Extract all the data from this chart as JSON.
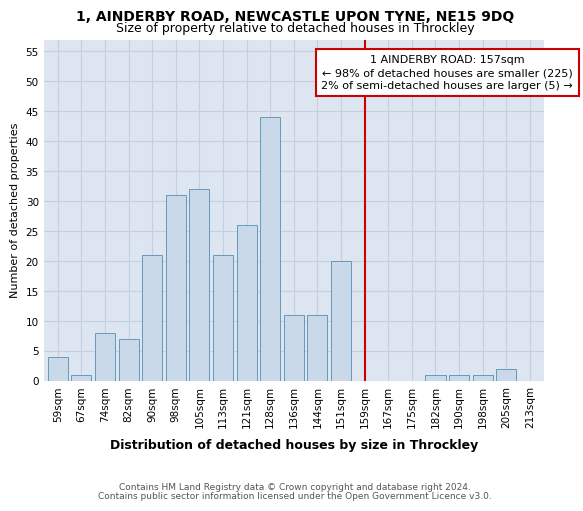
{
  "title1": "1, AINDERBY ROAD, NEWCASTLE UPON TYNE, NE15 9DQ",
  "title2": "Size of property relative to detached houses in Throckley",
  "xlabel": "Distribution of detached houses by size in Throckley",
  "ylabel": "Number of detached properties",
  "categories": [
    "59sqm",
    "67sqm",
    "74sqm",
    "82sqm",
    "90sqm",
    "98sqm",
    "105sqm",
    "113sqm",
    "121sqm",
    "128sqm",
    "136sqm",
    "144sqm",
    "151sqm",
    "159sqm",
    "167sqm",
    "175sqm",
    "182sqm",
    "190sqm",
    "198sqm",
    "205sqm",
    "213sqm"
  ],
  "values": [
    4,
    1,
    8,
    7,
    21,
    31,
    32,
    21,
    26,
    44,
    11,
    11,
    20,
    0,
    0,
    0,
    1,
    1,
    1,
    2,
    0
  ],
  "bar_color": "#c9d9ea",
  "bar_edge_color": "#6699bb",
  "bar_width": 0.85,
  "marker_color": "#cc0000",
  "annotation_line1": "1 AINDERBY ROAD: 157sqm",
  "annotation_line2": "← 98% of detached houses are smaller (225)",
  "annotation_line3": "2% of semi-detached houses are larger (5) →",
  "annotation_box_color": "#ffffff",
  "annotation_border_color": "#cc0000",
  "ylim": [
    0,
    57
  ],
  "yticks": [
    0,
    5,
    10,
    15,
    20,
    25,
    30,
    35,
    40,
    45,
    50,
    55
  ],
  "grid_color": "#c5cfe0",
  "background_color": "#dde5f0",
  "footer1": "Contains HM Land Registry data © Crown copyright and database right 2024.",
  "footer2": "Contains public sector information licensed under the Open Government Licence v3.0.",
  "title1_fontsize": 10,
  "title2_fontsize": 9,
  "xlabel_fontsize": 9,
  "ylabel_fontsize": 8,
  "tick_fontsize": 7.5,
  "annotation_fontsize": 8,
  "footer_fontsize": 6.5
}
